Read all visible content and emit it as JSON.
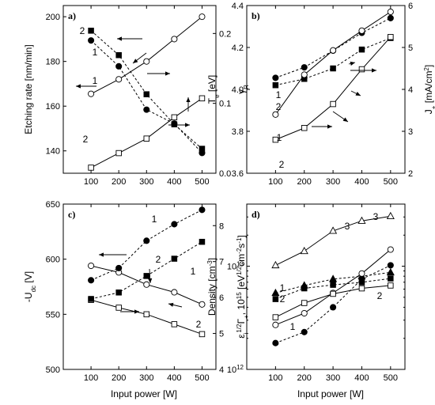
{
  "figure": {
    "x_label": "Input power [W]"
  },
  "chart_data": [
    {
      "panel": "a)",
      "type": "line",
      "x": [
        100,
        200,
        300,
        400,
        500
      ],
      "xlim": [
        0,
        550
      ],
      "xticks": [
        100,
        200,
        300,
        400,
        500
      ],
      "left_axis": {
        "label": "Etching rate [nm/min]",
        "lim": [
          130,
          205
        ],
        "ticks": [
          140,
          160,
          180,
          200
        ]
      },
      "right_axis": {
        "label": "γR",
        "lim": [
          0,
          0.24
        ],
        "ticks": [
          0.0,
          0.1,
          0.2
        ],
        "tick_labels": [
          "0.0",
          "0.1",
          "0.2"
        ]
      },
      "series": [
        {
          "label": "1",
          "axis": "left",
          "marker": "open-circle",
          "line": "solid",
          "values": [
            165.5,
            172,
            180,
            190,
            200
          ]
        },
        {
          "label": "2",
          "axis": "left",
          "marker": "open-square",
          "line": "solid",
          "values": [
            132.5,
            139,
            145.5,
            155,
            163.5
          ]
        },
        {
          "label": "1",
          "axis": "right",
          "marker": "filled-circle",
          "line": "dashed",
          "values": [
            0.19,
            0.153,
            0.091,
            0.071,
            0.029
          ]
        },
        {
          "label": "2",
          "axis": "right",
          "marker": "filled-square",
          "line": "dashed",
          "values": [
            0.204,
            0.169,
            0.113,
            0.07,
            0.035
          ]
        }
      ],
      "labels": [
        "1",
        "2",
        "1",
        "2"
      ]
    },
    {
      "panel": "b)",
      "type": "line",
      "x": [
        100,
        200,
        300,
        400,
        500
      ],
      "xlim": [
        0,
        550
      ],
      "xticks": [
        100,
        200,
        300,
        400,
        500
      ],
      "left_axis": {
        "label": "Te [eV]",
        "lim": [
          3.6,
          4.4
        ],
        "ticks": [
          3.6,
          3.8,
          4.0,
          4.2,
          4.4
        ],
        "tick_labels": [
          "3.6",
          "3.8",
          "4.0",
          "4.2",
          "4.4"
        ]
      },
      "right_axis": {
        "label": "J+ [mA/cm2]",
        "lim": [
          2,
          6
        ],
        "ticks": [
          2,
          3,
          4,
          5,
          6
        ]
      },
      "series": [
        {
          "label": "1",
          "axis": "left",
          "marker": "filled-circle",
          "line": "dashed",
          "values": [
            4.055,
            4.105,
            4.185,
            4.27,
            4.34
          ]
        },
        {
          "label": "2",
          "axis": "left",
          "marker": "filled-square",
          "line": "dashed",
          "values": [
            4.02,
            4.05,
            4.1,
            4.19,
            4.245
          ]
        },
        {
          "label": "1",
          "axis": "right",
          "marker": "open-circle",
          "line": "solid",
          "values": [
            3.4,
            4.35,
            4.93,
            5.4,
            5.85
          ]
        },
        {
          "label": "2",
          "axis": "right",
          "marker": "open-square",
          "line": "solid",
          "values": [
            2.8,
            3.08,
            3.65,
            4.48,
            5.25
          ]
        }
      ],
      "labels": [
        "1",
        "2",
        "1",
        "2"
      ]
    },
    {
      "panel": "c)",
      "type": "line",
      "x": [
        100,
        200,
        300,
        400,
        500
      ],
      "xlim": [
        0,
        550
      ],
      "xticks": [
        100,
        200,
        300,
        400,
        500
      ],
      "left_axis": {
        "label": "-Udc [V]",
        "lim": [
          500,
          650
        ],
        "ticks": [
          500,
          550,
          600,
          650
        ]
      },
      "right_axis": {
        "label": "εi1/2Γ+, 1015 [eV1/2cm-2s-1]",
        "lim": [
          4,
          8.6
        ],
        "ticks": [
          4,
          5,
          6,
          7,
          8
        ]
      },
      "series": [
        {
          "label": "1",
          "axis": "left",
          "marker": "open-circle",
          "line": "solid",
          "values": [
            594,
            588,
            577,
            570,
            559
          ]
        },
        {
          "label": "2",
          "axis": "left",
          "marker": "open-square",
          "line": "solid",
          "values": [
            563,
            556,
            550,
            541,
            532
          ]
        },
        {
          "label": "1",
          "axis": "right",
          "marker": "filled-circle",
          "line": "dashed",
          "values": [
            6.48,
            6.82,
            7.58,
            8.04,
            8.44
          ]
        },
        {
          "label": "2",
          "axis": "right",
          "marker": "filled-square",
          "line": "dashed",
          "values": [
            5.96,
            6.14,
            6.6,
            7.08,
            7.55
          ]
        }
      ],
      "labels": [
        "1",
        "1",
        "2",
        "2"
      ]
    },
    {
      "panel": "d)",
      "type": "line",
      "x": [
        100,
        200,
        300,
        400,
        500
      ],
      "xlim": [
        0,
        550
      ],
      "xticks": [
        100,
        200,
        300,
        400,
        500
      ],
      "left_axis": {
        "label": "Density [cm-3]",
        "scale": "log",
        "lim": [
          1000000000000.0,
          40000000000000.0
        ],
        "ticks": [
          1000000000000.0,
          10000000000000.0
        ],
        "tick_labels": [
          "10^12",
          "10^13"
        ]
      },
      "series": [
        {
          "label": "1",
          "marker": "filled-circle",
          "line": "dashed",
          "values": [
            1800000000000.0,
            2300000000000.0,
            4000000000000.0,
            7500000000000.0,
            10200000000000.0
          ]
        },
        {
          "label": "2",
          "marker": "filled-square",
          "line": "dashed",
          "values": [
            4800000000000.0,
            6100000000000.0,
            6600000000000.0,
            7000000000000.0,
            7600000000000.0
          ]
        },
        {
          "label": "3",
          "marker": "filled-triangle",
          "line": "dashed",
          "values": [
            5500000000000.0,
            6500000000000.0,
            7500000000000.0,
            8000000000000.0,
            8700000000000.0
          ]
        },
        {
          "label": "1",
          "marker": "open-circle",
          "line": "solid",
          "values": [
            2700000000000.0,
            3500000000000.0,
            5500000000000.0,
            8500000000000.0,
            14500000000000.0
          ]
        },
        {
          "label": "2",
          "marker": "open-square",
          "line": "solid",
          "values": [
            3200000000000.0,
            4400000000000.0,
            5400000000000.0,
            6100000000000.0,
            6500000000000.0
          ]
        },
        {
          "label": "3",
          "marker": "open-triangle",
          "line": "solid",
          "values": [
            10200000000000.0,
            14000000000000.0,
            22000000000000.0,
            27500000000000.0,
            30500000000000.0
          ]
        }
      ],
      "labels": [
        "1",
        "2",
        "3",
        "3",
        "1",
        "2"
      ]
    }
  ]
}
